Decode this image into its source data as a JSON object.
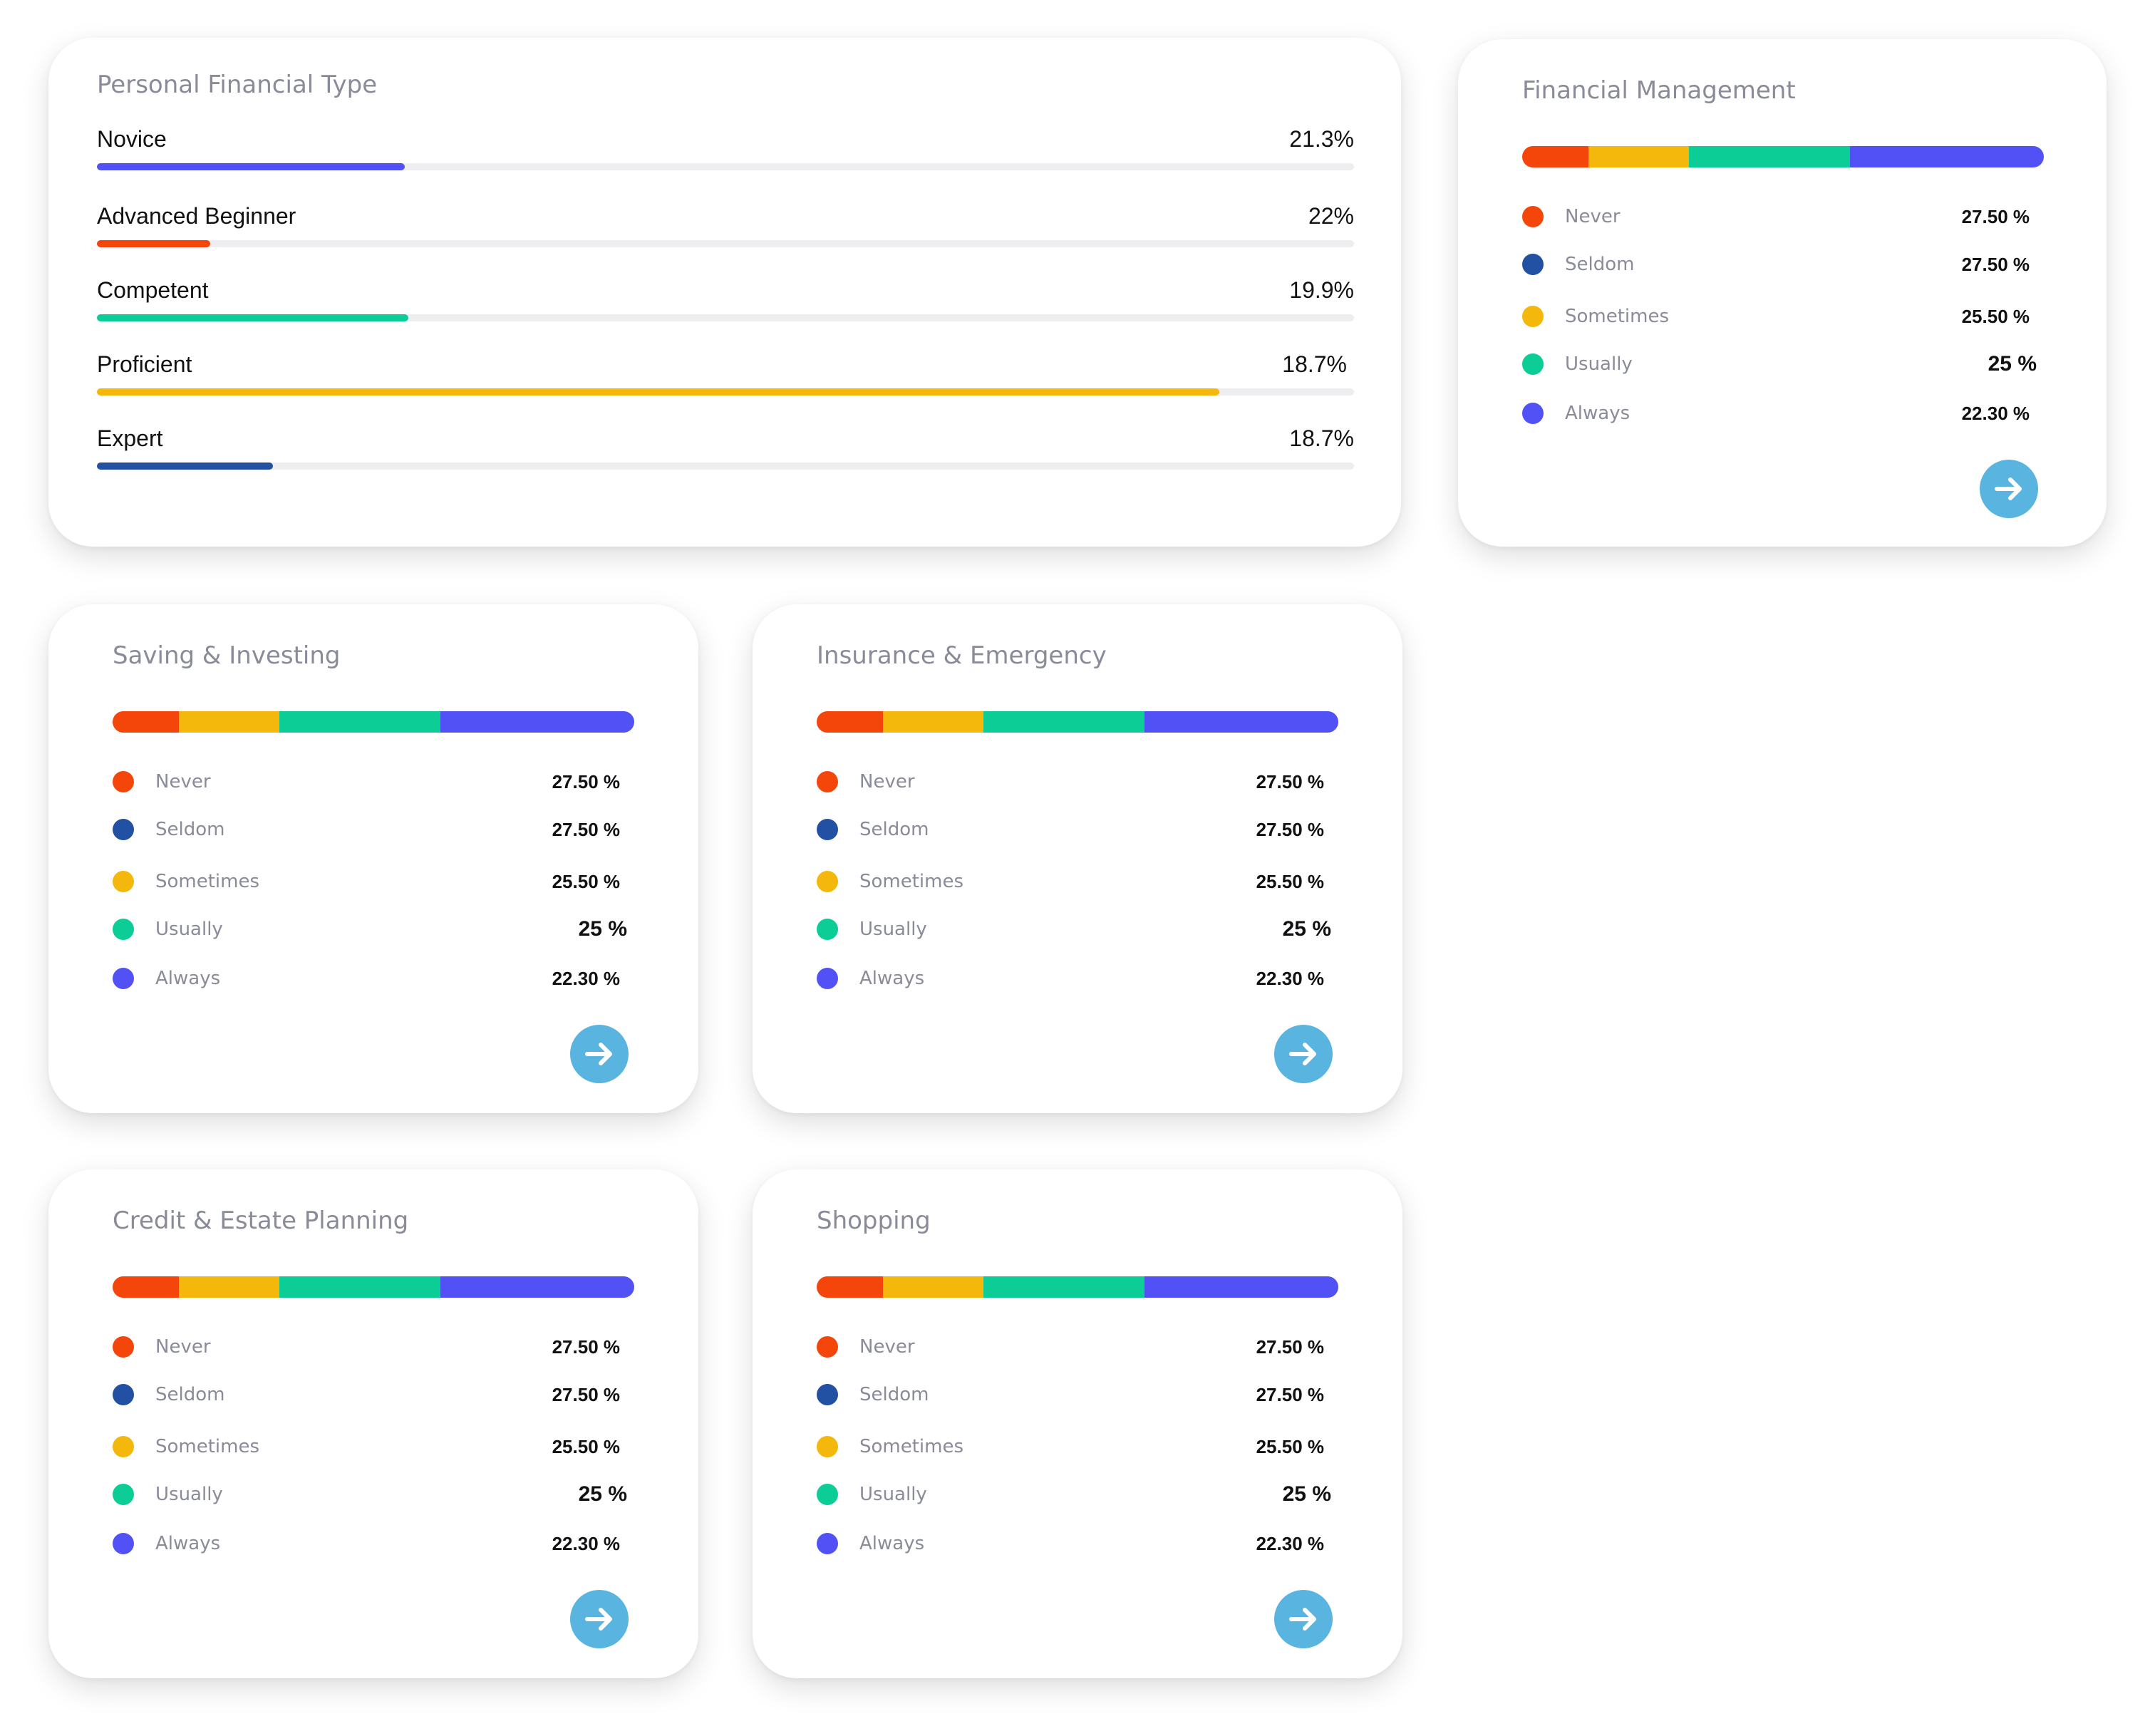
{
  "colors": {
    "never": "#f4460b",
    "seldom": "#2250a3",
    "sometimes": "#f4b70c",
    "usually": "#0dcd97",
    "always": "#5151f5",
    "accent": "#5ab4e0"
  },
  "personal_financial_type": {
    "title": "Personal Financial Type",
    "items": [
      {
        "label": "Novice",
        "value": "21.3%",
        "fill": 0.245,
        "color": "#5151f5"
      },
      {
        "label": "Advanced Beginner",
        "value": "22%",
        "fill": 0.09,
        "color": "#f4460b"
      },
      {
        "label": "Competent",
        "value": "19.9%",
        "fill": 0.248,
        "color": "#0dcd97"
      },
      {
        "label": "Proficient",
        "value": "18.7%",
        "fill": 0.893,
        "color": "#f4b70c"
      },
      {
        "label": "Expert",
        "value": "18.7%",
        "fill": 0.14,
        "color": "#2250a3"
      }
    ]
  },
  "stack_segments": [
    {
      "name": "never",
      "fraction": 0.127,
      "color": "#f4460b"
    },
    {
      "name": "sometimes",
      "fraction": 0.193,
      "color": "#f4b70c"
    },
    {
      "name": "usually",
      "fraction": 0.308,
      "color": "#0dcd97"
    },
    {
      "name": "always",
      "fraction": 0.372,
      "color": "#5151f5"
    }
  ],
  "legend": [
    {
      "label": "Never",
      "value": "27.50 %",
      "color": "#f4460b"
    },
    {
      "label": "Seldom",
      "value": "27.50 %",
      "color": "#2250a3"
    },
    {
      "label": "Sometimes",
      "value": "25.50 %",
      "color": "#f4b70c"
    },
    {
      "label": "Usually",
      "value": "25 %",
      "color": "#0dcd97"
    },
    {
      "label": "Always",
      "value": "22.30 %",
      "color": "#5151f5"
    }
  ],
  "cards": [
    {
      "id": "financial-management",
      "title": "Financial Management"
    },
    {
      "id": "saving-investing",
      "title": "Saving & Investing"
    },
    {
      "id": "insurance-emergency",
      "title": "Insurance & Emergency"
    },
    {
      "id": "credit-estate-planning",
      "title": "Credit & Estate Planning"
    },
    {
      "id": "shopping",
      "title": "Shopping"
    }
  ],
  "arrow_icon": "arrow-right-icon"
}
